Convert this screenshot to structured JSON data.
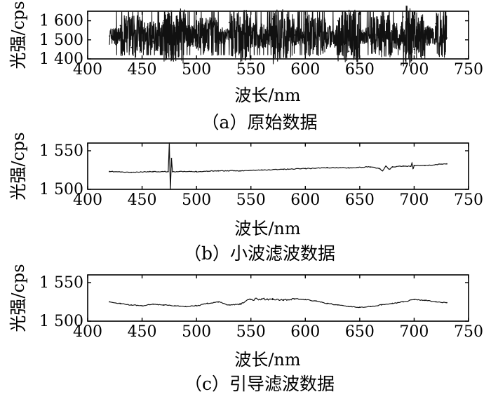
{
  "chart_data": [
    {
      "type": "line",
      "caption": "（a）原始数据",
      "xlabel": "波长/nm",
      "ylabel": "光强/cps",
      "xlim": [
        400,
        750
      ],
      "ylim": [
        1400,
        1650
      ],
      "x_ticks": [
        400,
        450,
        500,
        550,
        600,
        650,
        700,
        750
      ],
      "x_tick_labels": [
        "400",
        "450",
        "500",
        "550",
        "600",
        "650",
        "700",
        "750"
      ],
      "y_ticks": [
        1400,
        1500,
        1600
      ],
      "y_tick_labels": [
        "1 400",
        "1 500",
        "1 600"
      ],
      "x_range": [
        420,
        730
      ],
      "series": [
        {
          "x": [
            420,
            430,
            440,
            450,
            460,
            470,
            480,
            490,
            500,
            510,
            520,
            530,
            540,
            550,
            560,
            570,
            580,
            590,
            600,
            610,
            620,
            630,
            640,
            650,
            660,
            670,
            680,
            690,
            700,
            710,
            720,
            730
          ],
          "y": [
            1520,
            1575,
            1460,
            1545,
            1490,
            1600,
            1430,
            1530,
            1565,
            1470,
            1520,
            1590,
            1440,
            1540,
            1500,
            1610,
            1455,
            1525,
            1580,
            1465,
            1535,
            1600,
            1440,
            1520,
            1570,
            1460,
            1545,
            1620,
            1450,
            1530,
            1585,
            1510
          ]
        }
      ]
    },
    {
      "type": "line",
      "caption": "（b）小波滤波数据",
      "xlabel": "波长/nm",
      "ylabel": "光强/cps",
      "xlim": [
        400,
        750
      ],
      "ylim": [
        1500,
        1560
      ],
      "x_ticks": [
        400,
        450,
        500,
        550,
        600,
        650,
        700,
        750
      ],
      "x_tick_labels": [
        "400",
        "450",
        "500",
        "550",
        "600",
        "650",
        "700",
        "750"
      ],
      "y_ticks": [
        1500,
        1550
      ],
      "y_tick_labels": [
        "1 500",
        "1 550"
      ],
      "series": [
        {
          "x": [
            420,
            440,
            460,
            474,
            475,
            476,
            477,
            478,
            500,
            520,
            540,
            560,
            580,
            600,
            620,
            640,
            660,
            668,
            671,
            674,
            677,
            680,
            690,
            697,
            698,
            699,
            700,
            710,
            730
          ],
          "y": [
            1523,
            1522,
            1523,
            1523,
            1560,
            1500,
            1540,
            1523,
            1523,
            1524,
            1524,
            1525,
            1526,
            1527,
            1528,
            1528,
            1529,
            1527,
            1524,
            1530,
            1526,
            1529,
            1530,
            1530,
            1534,
            1527,
            1531,
            1531,
            1533
          ]
        }
      ]
    },
    {
      "type": "line",
      "caption": "（c）引导滤波数据",
      "xlabel": "波长/nm",
      "ylabel": "光强/cps",
      "xlim": [
        400,
        750
      ],
      "ylim": [
        1500,
        1560
      ],
      "x_ticks": [
        400,
        450,
        500,
        550,
        600,
        650,
        700,
        750
      ],
      "x_tick_labels": [
        "400",
        "450",
        "500",
        "550",
        "600",
        "650",
        "700",
        "750"
      ],
      "y_ticks": [
        1500,
        1550
      ],
      "y_tick_labels": [
        "1 500",
        "1 550"
      ],
      "series": [
        {
          "x": [
            420,
            430,
            440,
            450,
            460,
            470,
            480,
            490,
            500,
            510,
            520,
            530,
            540,
            550,
            560,
            570,
            580,
            590,
            600,
            610,
            620,
            630,
            640,
            650,
            660,
            670,
            680,
            690,
            700,
            710,
            720,
            730
          ],
          "y": [
            1525,
            1523,
            1521,
            1520,
            1522,
            1521,
            1520,
            1519,
            1520,
            1523,
            1525,
            1521,
            1522,
            1528,
            1529,
            1528,
            1527,
            1529,
            1528,
            1526,
            1523,
            1521,
            1519,
            1518,
            1519,
            1521,
            1523,
            1525,
            1528,
            1527,
            1525,
            1524
          ]
        }
      ]
    }
  ]
}
